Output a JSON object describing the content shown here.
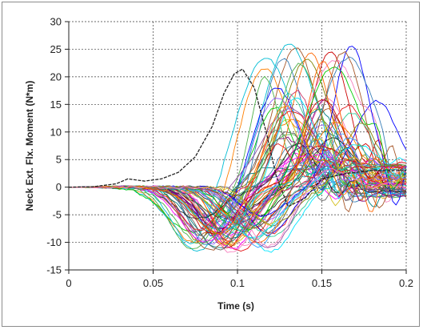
{
  "chart_data": {
    "type": "line",
    "title": "",
    "xlabel": "Time (s)",
    "ylabel": "Neck Ext. Flx. Moment (N*m)",
    "xlim": [
      0,
      0.2
    ],
    "ylim": [
      -15,
      30
    ],
    "x_ticks": [
      "0",
      "0.05",
      "0.1",
      "0.15",
      "0.2"
    ],
    "y_ticks": [
      "30",
      "25",
      "20",
      "15",
      "10",
      "5",
      "0",
      "-5",
      "-10",
      "-15"
    ],
    "grid": "dashed",
    "legend": "none",
    "series_count": 80,
    "highlight_series": {
      "color": "#222222",
      "points": [
        [
          0,
          0
        ],
        [
          0.015,
          0.1
        ],
        [
          0.028,
          0.6
        ],
        [
          0.035,
          1.5
        ],
        [
          0.045,
          1.1
        ],
        [
          0.055,
          1.5
        ],
        [
          0.065,
          2.7
        ],
        [
          0.075,
          5.5
        ],
        [
          0.085,
          11
        ],
        [
          0.092,
          17
        ],
        [
          0.098,
          20.5
        ],
        [
          0.103,
          21.4
        ],
        [
          0.11,
          18
        ],
        [
          0.117,
          10
        ],
        [
          0.123,
          2
        ],
        [
          0.13,
          -3.5
        ],
        [
          0.14,
          -2
        ],
        [
          0.15,
          1.5
        ],
        [
          0.165,
          2.5
        ],
        [
          0.18,
          3
        ],
        [
          0.2,
          3
        ]
      ]
    },
    "colors": [
      "#e41a1c",
      "#377eb8",
      "#4daf4a",
      "#984ea3",
      "#ff7f00",
      "#d4c01e",
      "#a65628",
      "#f781bf",
      "#00bcd4",
      "#222222",
      "#ff00ff",
      "#00cc00",
      "#0000ff",
      "#cc0000",
      "#808000",
      "#008080",
      "#800080",
      "#ff6600",
      "#3399ff",
      "#33cc99",
      "#9966ff",
      "#cc3366",
      "#666666",
      "#00e5ff"
    ]
  }
}
